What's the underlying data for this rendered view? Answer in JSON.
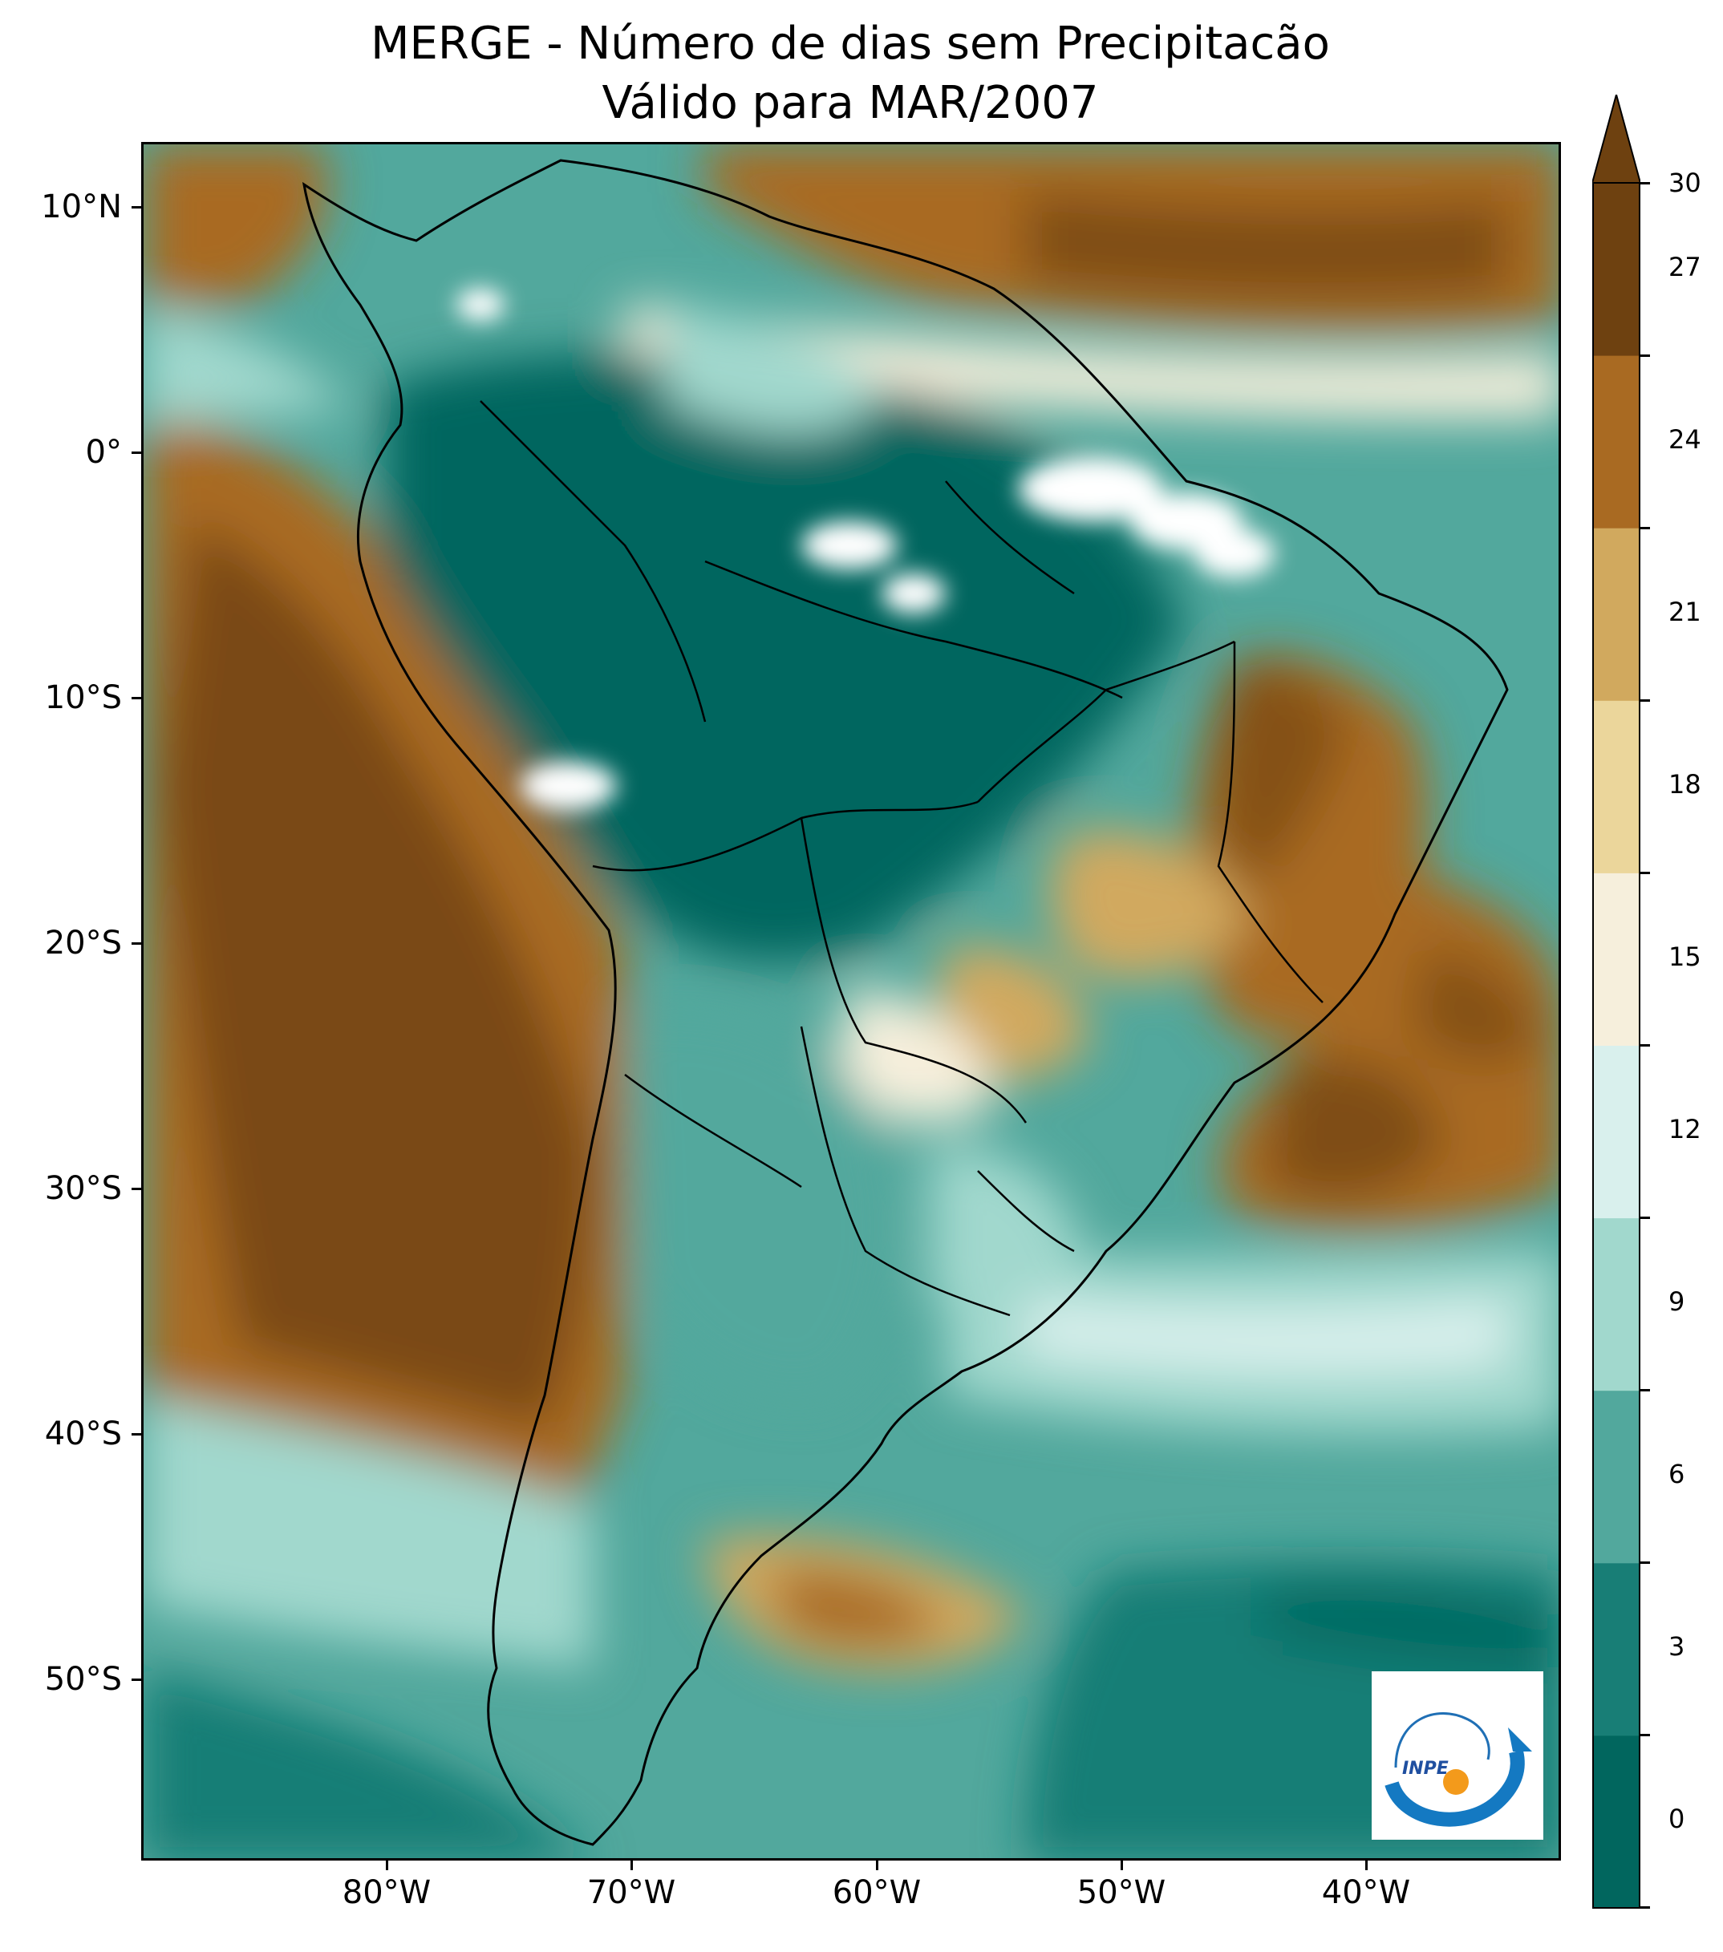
{
  "title": "MERGE - Número de dias sem Precipitacão",
  "subtitle": "Válido para MAR/2007",
  "axes": {
    "lat_labels": [
      {
        "text": "10°N",
        "value": 10
      },
      {
        "text": "0°",
        "value": 0
      },
      {
        "text": "10°S",
        "value": -10
      },
      {
        "text": "20°S",
        "value": -20
      },
      {
        "text": "30°S",
        "value": -30
      },
      {
        "text": "40°S",
        "value": -40
      },
      {
        "text": "50°S",
        "value": -50
      }
    ],
    "lon_labels": [
      {
        "text": "80°W",
        "value": -80
      },
      {
        "text": "70°W",
        "value": -70
      },
      {
        "text": "60°W",
        "value": -60
      },
      {
        "text": "50°W",
        "value": -50
      },
      {
        "text": "40°W",
        "value": -40
      }
    ],
    "lon_range": [
      -90,
      -32
    ],
    "lat_range": [
      -57,
      13
    ]
  },
  "colorbar": {
    "ticks": [
      "0",
      "3",
      "6",
      "9",
      "12",
      "15",
      "18",
      "21",
      "24",
      "27",
      "30"
    ],
    "extend": "max",
    "colors": [
      "#01665e",
      "#187e76",
      "#52a89d",
      "#a1d8cd",
      "#d9f0ed",
      "#f6efdc",
      "#ebd69b",
      "#d1a95e",
      "#a96a22",
      "#6e4110",
      "#6e4110"
    ]
  },
  "logo": {
    "text": "INPE"
  }
}
